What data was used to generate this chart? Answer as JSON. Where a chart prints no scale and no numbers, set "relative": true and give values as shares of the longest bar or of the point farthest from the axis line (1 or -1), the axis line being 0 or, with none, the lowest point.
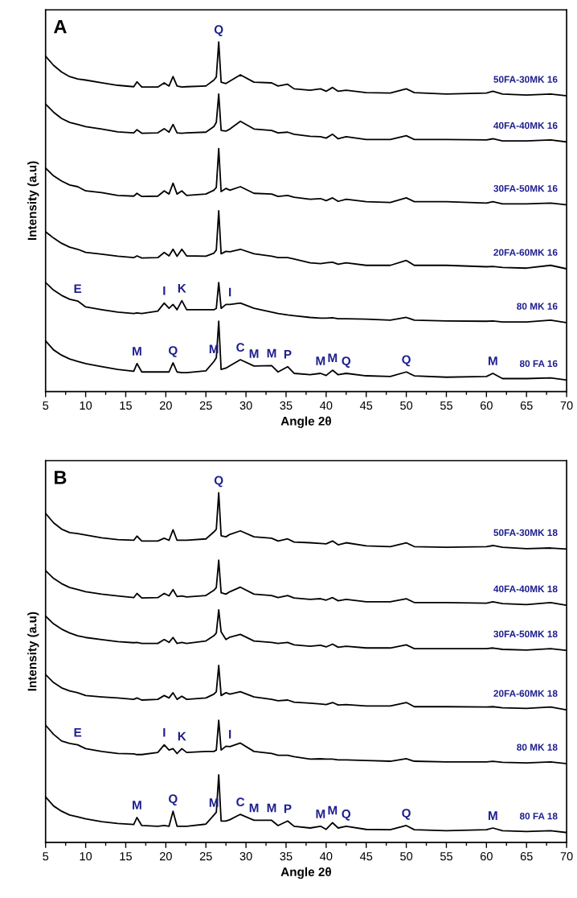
{
  "chart_data": [
    {
      "type": "line",
      "title": "A",
      "xlabel": "Angle 2θ",
      "ylabel": "Intensity (a.u)",
      "relative": true,
      "x": [
        5,
        6,
        7,
        8,
        9,
        10,
        12,
        14,
        16,
        16.4,
        17,
        19,
        19.8,
        20.4,
        20.9,
        21.4,
        22,
        22.6,
        25,
        26,
        26.3,
        26.6,
        26.9,
        27.5,
        28,
        29.3,
        31,
        33.2,
        34,
        35.2,
        36,
        38,
        39.3,
        40,
        40.8,
        41.5,
        42.5,
        45,
        48,
        50,
        51,
        55,
        60,
        60.8,
        62,
        65,
        68,
        70
      ],
      "xlim": [
        5,
        70
      ],
      "xticks": [
        5,
        10,
        15,
        20,
        25,
        30,
        35,
        40,
        45,
        50,
        55,
        60,
        65,
        70
      ],
      "tick_labels": "x",
      "grid": false,
      "legend": false,
      "marker": "none",
      "line_style": "solid",
      "series": [
        {
          "name": "80 FA 16",
          "color": "#000000",
          "values": [
            0.145,
            0.119,
            0.104,
            0.093,
            0.086,
            0.08,
            0.071,
            0.063,
            0.058,
            0.08,
            0.056,
            0.056,
            0.056,
            0.056,
            0.082,
            0.056,
            0.054,
            0.054,
            0.059,
            0.086,
            0.097,
            0.201,
            0.063,
            0.067,
            0.074,
            0.091,
            0.073,
            0.074,
            0.056,
            0.071,
            0.052,
            0.048,
            0.052,
            0.046,
            0.061,
            0.048,
            0.052,
            0.045,
            0.043,
            0.056,
            0.045,
            0.041,
            0.043,
            0.052,
            0.037,
            0.037,
            0.039,
            0.033
          ]
        },
        {
          "name": "80 MK 16",
          "color": "#000000",
          "values": [
            0.312,
            0.29,
            0.275,
            0.264,
            0.259,
            0.242,
            0.234,
            0.227,
            0.223,
            0.225,
            0.223,
            0.23,
            0.253,
            0.238,
            0.249,
            0.234,
            0.26,
            0.234,
            0.234,
            0.234,
            0.238,
            0.312,
            0.238,
            0.249,
            0.249,
            0.253,
            0.238,
            0.227,
            0.223,
            0.219,
            0.217,
            0.212,
            0.21,
            0.21,
            0.211,
            0.208,
            0.208,
            0.207,
            0.204,
            0.212,
            0.204,
            0.202,
            0.201,
            0.202,
            0.199,
            0.199,
            0.204,
            0.197
          ]
        },
        {
          "name": "20FA-60MK 16",
          "color": "#000000",
          "values": [
            0.457,
            0.439,
            0.424,
            0.413,
            0.407,
            0.398,
            0.393,
            0.387,
            0.383,
            0.388,
            0.382,
            0.383,
            0.398,
            0.388,
            0.407,
            0.387,
            0.407,
            0.388,
            0.387,
            0.396,
            0.405,
            0.517,
            0.394,
            0.401,
            0.4,
            0.407,
            0.394,
            0.387,
            0.383,
            0.383,
            0.379,
            0.368,
            0.366,
            0.368,
            0.37,
            0.364,
            0.368,
            0.361,
            0.361,
            0.375,
            0.361,
            0.361,
            0.357,
            0.358,
            0.355,
            0.353,
            0.361,
            0.351
          ]
        },
        {
          "name": "30FA-50MK 16",
          "color": "#000000",
          "values": [
            0.639,
            0.617,
            0.602,
            0.591,
            0.586,
            0.574,
            0.569,
            0.561,
            0.559,
            0.567,
            0.558,
            0.559,
            0.574,
            0.565,
            0.596,
            0.565,
            0.574,
            0.561,
            0.565,
            0.576,
            0.584,
            0.695,
            0.572,
            0.581,
            0.576,
            0.586,
            0.567,
            0.565,
            0.558,
            0.561,
            0.556,
            0.55,
            0.552,
            0.546,
            0.554,
            0.544,
            0.55,
            0.543,
            0.541,
            0.554,
            0.543,
            0.543,
            0.539,
            0.543,
            0.537,
            0.537,
            0.539,
            0.534
          ]
        },
        {
          "name": "40FA-40MK 16",
          "color": "#000000",
          "values": [
            0.822,
            0.799,
            0.781,
            0.77,
            0.764,
            0.758,
            0.751,
            0.743,
            0.74,
            0.749,
            0.739,
            0.74,
            0.752,
            0.742,
            0.764,
            0.74,
            0.739,
            0.74,
            0.742,
            0.758,
            0.77,
            0.851,
            0.747,
            0.745,
            0.751,
            0.773,
            0.751,
            0.747,
            0.74,
            0.742,
            0.736,
            0.73,
            0.729,
            0.725,
            0.736,
            0.723,
            0.729,
            0.721,
            0.721,
            0.732,
            0.721,
            0.721,
            0.72,
            0.723,
            0.717,
            0.717,
            0.72,
            0.714
          ]
        },
        {
          "name": "50FA-30MK 16",
          "color": "#000000",
          "values": [
            0.959,
            0.933,
            0.914,
            0.901,
            0.894,
            0.891,
            0.883,
            0.876,
            0.872,
            0.886,
            0.871,
            0.871,
            0.883,
            0.874,
            0.901,
            0.874,
            0.871,
            0.872,
            0.874,
            0.891,
            0.9,
            1.0,
            0.885,
            0.881,
            0.888,
            0.906,
            0.885,
            0.883,
            0.874,
            0.879,
            0.866,
            0.862,
            0.866,
            0.859,
            0.87,
            0.859,
            0.862,
            0.855,
            0.854,
            0.866,
            0.855,
            0.851,
            0.854,
            0.859,
            0.851,
            0.848,
            0.851,
            0.846
          ]
        }
      ],
      "annotations": [
        {
          "text": "Q",
          "x": 26.6,
          "y": 1.0
        },
        {
          "text": "E",
          "x": 9,
          "y": 0.259
        },
        {
          "text": "I",
          "x": 19.8,
          "y": 0.253
        },
        {
          "text": "K",
          "x": 22,
          "y": 0.26
        },
        {
          "text": "I",
          "x": 28,
          "y": 0.249
        },
        {
          "text": "M",
          "x": 16.4,
          "y": 0.08
        },
        {
          "text": "Q",
          "x": 20.9,
          "y": 0.082
        },
        {
          "text": "M",
          "x": 26,
          "y": 0.086
        },
        {
          "text": "C",
          "x": 29.3,
          "y": 0.091
        },
        {
          "text": "M",
          "x": 31,
          "y": 0.073
        },
        {
          "text": "M",
          "x": 33.2,
          "y": 0.074
        },
        {
          "text": "P",
          "x": 35.2,
          "y": 0.071
        },
        {
          "text": "M",
          "x": 39.3,
          "y": 0.052
        },
        {
          "text": "M",
          "x": 40.8,
          "y": 0.061
        },
        {
          "text": "Q",
          "x": 42.5,
          "y": 0.052
        },
        {
          "text": "Q",
          "x": 50,
          "y": 0.056
        },
        {
          "text": "M",
          "x": 60.8,
          "y": 0.052
        }
      ]
    },
    {
      "type": "line",
      "title": "B",
      "xlabel": "Angle 2θ",
      "ylabel": "Intensity (a.u)",
      "relative": true,
      "x": [
        5,
        6,
        7,
        8,
        9,
        10,
        12,
        14,
        16,
        16.4,
        17,
        19,
        19.8,
        20.4,
        20.9,
        21.4,
        22,
        22.6,
        25,
        26,
        26.3,
        26.6,
        26.9,
        27.5,
        28,
        29.3,
        31,
        33.2,
        34,
        35.2,
        36,
        38,
        39.3,
        40,
        40.8,
        41.5,
        42.5,
        45,
        48,
        50,
        51,
        55,
        60,
        60.8,
        62,
        65,
        68,
        70
      ],
      "xlim": [
        5,
        70
      ],
      "xticks": [
        5,
        10,
        15,
        20,
        25,
        30,
        35,
        40,
        45,
        50,
        55,
        60,
        65,
        70
      ],
      "tick_labels": "x",
      "grid": false,
      "legend": false,
      "marker": "none",
      "line_style": "solid",
      "series": [
        {
          "name": "80 FA 18",
          "color": "#000000",
          "values": [
            0.13,
            0.104,
            0.089,
            0.078,
            0.073,
            0.067,
            0.059,
            0.054,
            0.051,
            0.071,
            0.048,
            0.046,
            0.048,
            0.046,
            0.089,
            0.046,
            0.046,
            0.046,
            0.052,
            0.078,
            0.086,
            0.193,
            0.061,
            0.061,
            0.065,
            0.08,
            0.063,
            0.063,
            0.048,
            0.061,
            0.046,
            0.041,
            0.046,
            0.037,
            0.056,
            0.041,
            0.046,
            0.037,
            0.036,
            0.048,
            0.036,
            0.033,
            0.036,
            0.041,
            0.033,
            0.031,
            0.033,
            0.028
          ]
        },
        {
          "name": "80 MK 18",
          "color": "#000000",
          "values": [
            0.335,
            0.309,
            0.29,
            0.283,
            0.279,
            0.268,
            0.26,
            0.254,
            0.253,
            0.251,
            0.251,
            0.257,
            0.279,
            0.264,
            0.268,
            0.254,
            0.268,
            0.257,
            0.26,
            0.26,
            0.264,
            0.349,
            0.264,
            0.275,
            0.274,
            0.284,
            0.26,
            0.254,
            0.249,
            0.249,
            0.245,
            0.238,
            0.239,
            0.238,
            0.238,
            0.236,
            0.236,
            0.234,
            0.232,
            0.239,
            0.232,
            0.23,
            0.23,
            0.232,
            0.229,
            0.227,
            0.23,
            0.225
          ]
        },
        {
          "name": "20FA-60MK 18",
          "color": "#000000",
          "values": [
            0.48,
            0.457,
            0.442,
            0.433,
            0.428,
            0.42,
            0.416,
            0.413,
            0.409,
            0.413,
            0.407,
            0.409,
            0.42,
            0.413,
            0.428,
            0.409,
            0.418,
            0.409,
            0.413,
            0.424,
            0.431,
            0.506,
            0.42,
            0.428,
            0.424,
            0.431,
            0.416,
            0.409,
            0.405,
            0.407,
            0.401,
            0.398,
            0.396,
            0.394,
            0.4,
            0.393,
            0.394,
            0.39,
            0.39,
            0.4,
            0.388,
            0.388,
            0.387,
            0.388,
            0.385,
            0.383,
            0.387,
            0.379
          ]
        },
        {
          "name": "30FA-50MK 18",
          "color": "#000000",
          "values": [
            0.647,
            0.625,
            0.61,
            0.599,
            0.591,
            0.586,
            0.58,
            0.574,
            0.571,
            0.572,
            0.569,
            0.569,
            0.58,
            0.572,
            0.586,
            0.569,
            0.572,
            0.569,
            0.576,
            0.591,
            0.599,
            0.665,
            0.602,
            0.58,
            0.587,
            0.595,
            0.576,
            0.572,
            0.569,
            0.572,
            0.565,
            0.561,
            0.564,
            0.559,
            0.567,
            0.558,
            0.561,
            0.556,
            0.556,
            0.565,
            0.554,
            0.554,
            0.554,
            0.556,
            0.552,
            0.55,
            0.554,
            0.549
          ]
        },
        {
          "name": "40FA-40MK 18",
          "color": "#000000",
          "values": [
            0.777,
            0.755,
            0.74,
            0.729,
            0.723,
            0.717,
            0.71,
            0.705,
            0.7,
            0.712,
            0.699,
            0.7,
            0.712,
            0.705,
            0.723,
            0.703,
            0.705,
            0.702,
            0.706,
            0.721,
            0.729,
            0.807,
            0.714,
            0.71,
            0.717,
            0.73,
            0.71,
            0.706,
            0.7,
            0.706,
            0.699,
            0.695,
            0.697,
            0.693,
            0.7,
            0.691,
            0.695,
            0.688,
            0.688,
            0.697,
            0.686,
            0.686,
            0.684,
            0.688,
            0.683,
            0.68,
            0.686,
            0.678
          ]
        },
        {
          "name": "50FA-30MK 18",
          "color": "#000000",
          "values": [
            0.941,
            0.914,
            0.896,
            0.886,
            0.883,
            0.879,
            0.871,
            0.866,
            0.864,
            0.876,
            0.862,
            0.862,
            0.87,
            0.864,
            0.894,
            0.864,
            0.864,
            0.864,
            0.868,
            0.888,
            0.896,
            1.0,
            0.877,
            0.874,
            0.881,
            0.891,
            0.874,
            0.87,
            0.862,
            0.868,
            0.859,
            0.857,
            0.855,
            0.854,
            0.862,
            0.851,
            0.857,
            0.848,
            0.846,
            0.857,
            0.846,
            0.844,
            0.846,
            0.849,
            0.844,
            0.84,
            0.842,
            0.839
          ]
        }
      ],
      "annotations": [
        {
          "text": "Q",
          "x": 26.6,
          "y": 1.0
        },
        {
          "text": "E",
          "x": 9,
          "y": 0.279
        },
        {
          "text": "I",
          "x": 19.8,
          "y": 0.279
        },
        {
          "text": "K",
          "x": 22,
          "y": 0.268
        },
        {
          "text": "I",
          "x": 28,
          "y": 0.274
        },
        {
          "text": "M",
          "x": 16.4,
          "y": 0.071
        },
        {
          "text": "Q",
          "x": 20.9,
          "y": 0.089
        },
        {
          "text": "M",
          "x": 26,
          "y": 0.078
        },
        {
          "text": "C",
          "x": 29.3,
          "y": 0.08
        },
        {
          "text": "M",
          "x": 31,
          "y": 0.063
        },
        {
          "text": "M",
          "x": 33.2,
          "y": 0.063
        },
        {
          "text": "P",
          "x": 35.2,
          "y": 0.061
        },
        {
          "text": "M",
          "x": 39.3,
          "y": 0.046
        },
        {
          "text": "M",
          "x": 40.8,
          "y": 0.056
        },
        {
          "text": "Q",
          "x": 42.5,
          "y": 0.046
        },
        {
          "text": "Q",
          "x": 50,
          "y": 0.048
        },
        {
          "text": "M",
          "x": 60.8,
          "y": 0.041
        }
      ]
    }
  ]
}
